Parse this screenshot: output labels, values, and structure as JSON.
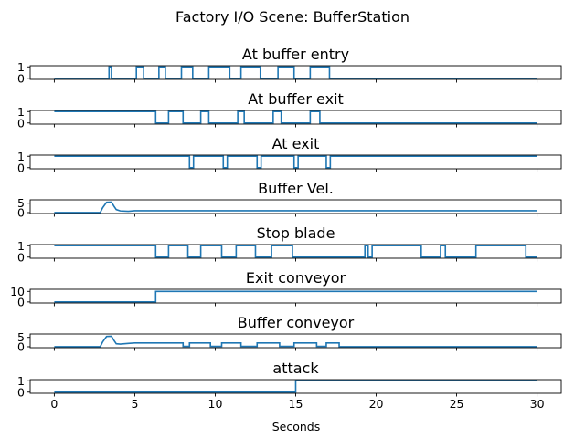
{
  "chart_data": {
    "type": "line",
    "title": "Factory I/O Scene: BufferStation",
    "xlabel": "Seconds",
    "xlim": [
      -1.5,
      31.5
    ],
    "xticks": [
      0,
      5,
      10,
      15,
      20,
      25,
      30
    ],
    "color": "#1f77b4",
    "subplots": [
      {
        "title": "At buffer entry",
        "ylim": [
          -0.1,
          1.1
        ],
        "yticks": [
          0,
          1
        ],
        "x": [
          0,
          3.4,
          3.4,
          3.55,
          3.55,
          5.1,
          5.1,
          5.55,
          5.55,
          6.5,
          6.5,
          6.9,
          6.9,
          7.9,
          7.9,
          8.6,
          8.6,
          9.6,
          9.6,
          10.9,
          10.9,
          11.6,
          11.6,
          12.8,
          12.8,
          13.9,
          13.9,
          14.9,
          14.9,
          15.9,
          15.9,
          17.1,
          17.1,
          30
        ],
        "y": [
          0,
          0,
          1,
          1,
          0,
          0,
          1,
          1,
          0,
          0,
          1,
          1,
          0,
          0,
          1,
          1,
          0,
          0,
          1,
          1,
          0,
          0,
          1,
          1,
          0,
          0,
          1,
          1,
          0,
          0,
          1,
          1,
          0,
          0
        ]
      },
      {
        "title": "At buffer exit",
        "ylim": [
          -0.1,
          1.1
        ],
        "yticks": [
          0,
          1
        ],
        "x": [
          0,
          6.3,
          6.3,
          7.1,
          7.1,
          8.0,
          8.0,
          9.1,
          9.1,
          9.6,
          9.6,
          11.4,
          11.4,
          11.8,
          11.8,
          13.6,
          13.6,
          14.1,
          14.1,
          15.9,
          15.9,
          16.5,
          16.5,
          17.2,
          17.2,
          30
        ],
        "y": [
          1,
          1,
          0,
          0,
          1,
          1,
          0,
          0,
          1,
          1,
          0,
          0,
          1,
          1,
          0,
          0,
          1,
          1,
          0,
          0,
          1,
          1,
          0,
          0,
          0,
          0
        ]
      },
      {
        "title": "At exit",
        "ylim": [
          -0.1,
          1.1
        ],
        "yticks": [
          0,
          1
        ],
        "x": [
          0,
          8.4,
          8.4,
          8.65,
          8.65,
          10.5,
          10.5,
          10.75,
          10.75,
          12.6,
          12.6,
          12.85,
          12.85,
          14.9,
          14.9,
          15.15,
          15.15,
          16.9,
          16.9,
          17.15,
          17.15,
          30
        ],
        "y": [
          1,
          1,
          0,
          0,
          1,
          1,
          0,
          0,
          1,
          1,
          0,
          0,
          1,
          1,
          0,
          0,
          1,
          1,
          0,
          0,
          1,
          1
        ]
      },
      {
        "title": "Buffer Vel.",
        "ylim": [
          -0.5,
          6.8
        ],
        "yticks": [
          0,
          5
        ],
        "x": [
          0,
          2.85,
          3.0,
          3.25,
          3.55,
          3.7,
          3.85,
          4.1,
          4.6,
          5.0,
          8.0,
          30
        ],
        "y": [
          0,
          0,
          2.5,
          5.5,
          5.6,
          3.5,
          1.6,
          0.9,
          0.7,
          1.0,
          1.0,
          1.0
        ]
      },
      {
        "title": "Stop blade",
        "ylim": [
          -0.1,
          1.1
        ],
        "yticks": [
          0,
          1
        ],
        "x": [
          0,
          6.3,
          6.3,
          7.1,
          7.1,
          8.3,
          8.3,
          9.1,
          9.1,
          10.4,
          10.4,
          11.3,
          11.3,
          12.5,
          12.5,
          13.5,
          13.5,
          14.8,
          14.8,
          19.3,
          19.3,
          19.5,
          19.5,
          19.75,
          19.75,
          22.8,
          22.8,
          24.0,
          24.0,
          24.3,
          24.3,
          26.2,
          26.2,
          29.3,
          29.3,
          30
        ],
        "y": [
          1,
          1,
          0,
          0,
          1,
          1,
          0,
          0,
          1,
          1,
          0,
          0,
          1,
          1,
          0,
          0,
          1,
          1,
          0,
          0,
          1,
          1,
          0,
          0,
          1,
          1,
          0,
          0,
          1,
          1,
          0,
          0,
          1,
          1,
          0,
          0
        ]
      },
      {
        "title": "Exit conveyor",
        "ylim": [
          -1,
          12
        ],
        "yticks": [
          0,
          10
        ],
        "x": [
          0,
          6.3,
          6.3,
          30
        ],
        "y": [
          0,
          0,
          10,
          10
        ]
      },
      {
        "title": "Buffer conveyor",
        "ylim": [
          -0.5,
          6.8
        ],
        "yticks": [
          0,
          5
        ],
        "x": [
          0,
          2.85,
          3.0,
          3.25,
          3.55,
          3.7,
          3.85,
          4.1,
          4.6,
          5.0,
          8.0,
          8.0,
          8.4,
          8.4,
          9.7,
          9.7,
          10.4,
          10.4,
          11.6,
          11.6,
          12.6,
          12.6,
          14.0,
          14.0,
          14.9,
          14.9,
          16.3,
          16.3,
          16.9,
          16.9,
          17.7,
          17.7,
          30
        ],
        "y": [
          0,
          0,
          2.5,
          5.5,
          5.6,
          3.5,
          1.6,
          1.4,
          1.8,
          2.0,
          2.0,
          0.2,
          0.2,
          2.0,
          2.0,
          0.2,
          0.2,
          2.0,
          2.0,
          0.2,
          0.2,
          2.0,
          2.0,
          0.2,
          0.2,
          2.0,
          2.0,
          0.2,
          0.2,
          2.0,
          2.0,
          0,
          0
        ]
      },
      {
        "title": "attack",
        "ylim": [
          -0.1,
          1.1
        ],
        "yticks": [
          0,
          1
        ],
        "x": [
          0,
          15.0,
          15.0,
          30
        ],
        "y": [
          0,
          0,
          1,
          1
        ]
      }
    ]
  }
}
